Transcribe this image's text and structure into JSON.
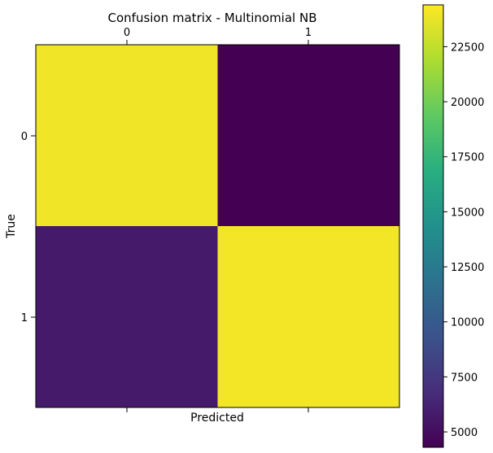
{
  "chart_data": {
    "type": "heatmap",
    "title": "Confusion matrix - Multinomial NB",
    "xlabel": "Predicted",
    "ylabel": "True",
    "x_ticks": [
      "0",
      "1"
    ],
    "y_ticks": [
      "0",
      "1"
    ],
    "matrix": [
      [
        24000,
        4300
      ],
      [
        5700,
        24100
      ]
    ],
    "colormap": "viridis",
    "colorbar": {
      "min": 4300,
      "max": 24400,
      "ticks": [
        5000,
        7500,
        10000,
        12500,
        15000,
        17500,
        20000,
        22500
      ],
      "tick_labels": [
        "5000",
        "7500",
        "10000",
        "12500",
        "15000",
        "17500",
        "20000",
        "22500"
      ]
    }
  }
}
